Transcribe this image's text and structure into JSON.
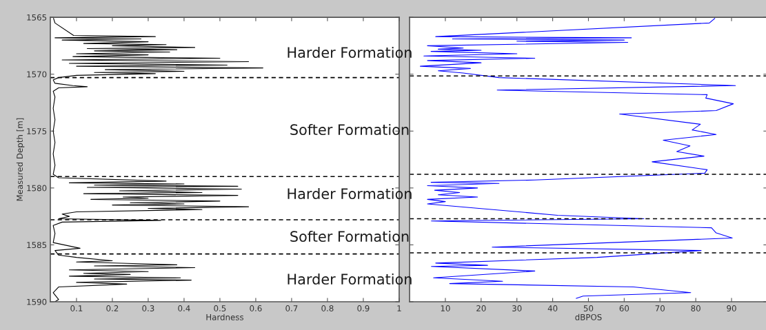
{
  "chart_data": [
    {
      "type": "line",
      "xlabel": "Hardness",
      "ylabel": "Measured Depth [m]",
      "xlim": [
        0.027,
        1
      ],
      "xticks": [
        0.1,
        0.2,
        0.3,
        0.4,
        0.5,
        0.6,
        0.7,
        0.8,
        0.9,
        1
      ],
      "ylim": [
        1590,
        1565
      ],
      "yticks": [
        1565,
        1570,
        1575,
        1580,
        1585,
        1590
      ],
      "series": [
        {
          "color": "#000000",
          "x": [
            0.036,
            0.04,
            0.092,
            0.32,
            0.04,
            0.28,
            0.06,
            0.3,
            0.12,
            0.35,
            0.2,
            0.43,
            0.13,
            0.38,
            0.15,
            0.36,
            0.1,
            0.3,
            0.09,
            0.5,
            0.06,
            0.58,
            0.08,
            0.52,
            0.1,
            0.62,
            0.18,
            0.4,
            0.15,
            0.32,
            0.1,
            0.05,
            0.035,
            0.04,
            0.09,
            0.13,
            0.05,
            0.035,
            0.04,
            0.035,
            0.04,
            0.035,
            0.04,
            0.035,
            0.04,
            0.035,
            0.05,
            0.35,
            0.08,
            0.4,
            0.15,
            0.55,
            0.13,
            0.56,
            0.22,
            0.45,
            0.12,
            0.55,
            0.23,
            0.3,
            0.14,
            0.5,
            0.25,
            0.4,
            0.2,
            0.58,
            0.3,
            0.45,
            0.1,
            0.06,
            0.08,
            0.05,
            0.335,
            0.06,
            0.035,
            0.04,
            0.035,
            0.11,
            0.04,
            0.05,
            0.1,
            0.2,
            0.1,
            0.38,
            0.15,
            0.43,
            0.08,
            0.3,
            0.12,
            0.25,
            0.08,
            0.39,
            0.15,
            0.42,
            0.1,
            0.24,
            0.05,
            0.035,
            0.05,
            0.04
          ],
          "values": [
            1565.1,
            1565.5,
            1566.6,
            1566.7,
            1566.8,
            1566.9,
            1567.0,
            1567.15,
            1567.3,
            1567.4,
            1567.5,
            1567.65,
            1567.75,
            1567.85,
            1567.95,
            1568.05,
            1568.2,
            1568.3,
            1568.45,
            1568.6,
            1568.75,
            1568.9,
            1569.05,
            1569.2,
            1569.3,
            1569.45,
            1569.6,
            1569.75,
            1569.85,
            1569.95,
            1570.1,
            1570.3,
            1570.5,
            1570.8,
            1571.0,
            1571.1,
            1571.2,
            1571.5,
            1572,
            1573,
            1574,
            1575,
            1576,
            1577,
            1578,
            1578.8,
            1579.1,
            1579.4,
            1579.55,
            1579.65,
            1579.75,
            1579.85,
            1579.95,
            1580.1,
            1580.25,
            1580.4,
            1580.5,
            1580.65,
            1580.8,
            1580.9,
            1581.0,
            1581.15,
            1581.3,
            1581.4,
            1581.5,
            1581.65,
            1581.8,
            1581.9,
            1582.1,
            1582.3,
            1582.5,
            1582.7,
            1582.85,
            1583.0,
            1583.3,
            1584.0,
            1584.8,
            1585.3,
            1585.5,
            1585.9,
            1586.1,
            1586.4,
            1586.5,
            1586.75,
            1586.85,
            1587.0,
            1587.2,
            1587.35,
            1587.5,
            1587.6,
            1587.75,
            1587.9,
            1588.0,
            1588.1,
            1588.3,
            1588.45,
            1588.7,
            1589.2,
            1589.8,
            1590
          ]
        }
      ],
      "ref_lines": [
        {
          "axis": "y",
          "value": 1570.3,
          "color": "#000000",
          "line_style": "dashed"
        },
        {
          "axis": "y",
          "value": 1579.0,
          "color": "#000000",
          "line_style": "dashed"
        },
        {
          "axis": "y",
          "value": 1582.8,
          "color": "#000000",
          "line_style": "dashed"
        },
        {
          "axis": "y",
          "value": 1585.8,
          "color": "#000000",
          "line_style": "dashed"
        }
      ],
      "annotations": [
        "Harder Formation",
        "Softer Formation",
        "Harder Formation",
        "Softer Formation",
        "Harder Formation"
      ]
    },
    {
      "type": "line",
      "xlabel": "dBPOS",
      "tick_labels": "x",
      "xlim": [
        0,
        100
      ],
      "xticks": [
        10,
        20,
        30,
        40,
        50,
        60,
        70,
        80,
        90
      ],
      "ylim": [
        1590,
        1565
      ],
      "yticks": [
        1565,
        1570,
        1575,
        1580,
        1585,
        1590
      ],
      "series": [
        {
          "color": "#0000ff",
          "x": [
            85.3,
            83.8,
            7.3,
            62,
            12,
            60,
            30,
            61,
            5,
            15,
            8,
            20,
            6,
            30,
            4,
            35,
            5,
            20,
            3,
            17,
            8,
            15,
            25,
            91.1,
            24.5,
            83.2,
            82.8,
            90.5,
            85.7,
            58.7,
            81.3,
            79,
            85.7,
            70.9,
            78.4,
            74.7,
            82.3,
            67.8,
            83.2,
            82.5,
            35,
            6,
            25,
            5,
            19,
            7,
            14,
            8,
            19,
            5,
            10,
            5,
            41.4,
            65.5,
            6.1,
            84.4,
            85.7,
            90.2,
            23.1,
            81.5,
            52.4,
            7.3,
            21.8,
            6.1,
            35,
            6.7,
            26,
            11.2,
            62.6,
            78.6,
            48.5,
            46.6
          ],
          "values": [
            1565.1,
            1565.5,
            1566.7,
            1566.8,
            1566.9,
            1567.0,
            1567.1,
            1567.2,
            1567.5,
            1567.7,
            1567.8,
            1567.9,
            1568.0,
            1568.2,
            1568.4,
            1568.6,
            1568.8,
            1569.0,
            1569.3,
            1569.5,
            1569.7,
            1569.9,
            1570.3,
            1571.0,
            1571.4,
            1571.8,
            1572.1,
            1572.6,
            1573.2,
            1573.5,
            1574.4,
            1574.9,
            1575.3,
            1575.8,
            1576.3,
            1576.8,
            1577.2,
            1577.7,
            1578.4,
            1578.7,
            1579.3,
            1579.5,
            1579.6,
            1579.8,
            1580.0,
            1580.2,
            1580.4,
            1580.6,
            1580.8,
            1581.0,
            1581.2,
            1581.4,
            1582.4,
            1582.7,
            1582.9,
            1583.5,
            1583.95,
            1584.4,
            1585.2,
            1585.5,
            1586.1,
            1586.6,
            1586.8,
            1586.9,
            1587.3,
            1587.9,
            1588.2,
            1588.4,
            1588.7,
            1589.2,
            1589.5,
            1589.7
          ]
        }
      ],
      "ref_lines": [
        {
          "axis": "y",
          "value": 1570.15,
          "color": "#000000",
          "line_style": "dashed"
        },
        {
          "axis": "y",
          "value": 1578.8,
          "color": "#000000",
          "line_style": "dashed"
        },
        {
          "axis": "y",
          "value": 1582.7,
          "color": "#000000",
          "line_style": "dashed"
        },
        {
          "axis": "y",
          "value": 1585.7,
          "color": "#000000",
          "line_style": "dashed"
        }
      ]
    }
  ]
}
